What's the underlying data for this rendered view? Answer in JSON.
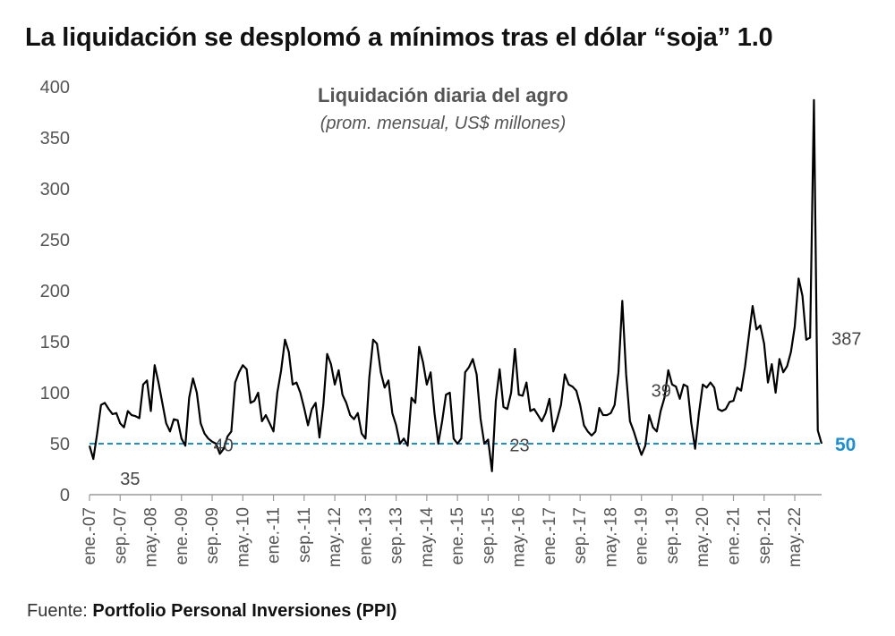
{
  "headline": "La liquidación se desplomó a mínimos tras el dólar “soja” 1.0",
  "source": {
    "label": "Fuente:",
    "name": "Portfolio Personal Inversiones (PPI)"
  },
  "colors": {
    "line": "#000000",
    "reference": "#1a8fd6",
    "axis_text": "#555555",
    "headline": "#111111"
  },
  "chart_data": {
    "type": "line",
    "title": "Liquidación diaria del agro",
    "subtitle": "(prom. mensual, US$ millones)",
    "ylim": [
      0,
      400
    ],
    "yticks": [
      0,
      50,
      100,
      150,
      200,
      250,
      300,
      350,
      400
    ],
    "grid": false,
    "legend": "none",
    "xtick_labels": [
      "ene.-07",
      "sep.-07",
      "may.-08",
      "ene.-09",
      "sep.-09",
      "may.-10",
      "ene.-11",
      "sep.-11",
      "may.-12",
      "ene.-13",
      "sep.-13",
      "may.-14",
      "ene.-15",
      "sep.-15",
      "may.-16",
      "ene.-17",
      "sep.-17",
      "may.-18",
      "ene.-19",
      "sep.-19",
      "may.-20",
      "ene.-21",
      "sep.-21",
      "may.-22"
    ],
    "reference_line": {
      "value": 50,
      "label": "50"
    },
    "annotations": [
      {
        "text": "35",
        "index": 1
      },
      {
        "text": "40",
        "index": 30
      },
      {
        "text": "23",
        "index": 104
      },
      {
        "text": "39",
        "index": 140
      },
      {
        "text": "387",
        "index": 188
      }
    ],
    "series": [
      {
        "values": [
          48,
          35,
          60,
          88,
          90,
          84,
          79,
          80,
          70,
          66,
          82,
          78,
          77,
          75,
          108,
          112,
          82,
          127,
          110,
          90,
          70,
          62,
          74,
          73,
          55,
          48,
          95,
          114,
          100,
          70,
          60,
          55,
          52,
          50,
          40,
          45,
          57,
          62,
          110,
          120,
          127,
          123,
          90,
          92,
          100,
          72,
          78,
          70,
          62,
          100,
          122,
          152,
          140,
          108,
          110,
          100,
          85,
          68,
          84,
          90,
          56,
          88,
          138,
          128,
          108,
          122,
          98,
          90,
          78,
          74,
          80,
          60,
          55,
          115,
          152,
          148,
          120,
          105,
          112,
          80,
          68,
          50,
          55,
          48,
          95,
          90,
          145,
          130,
          108,
          120,
          80,
          50,
          72,
          98,
          100,
          55,
          50,
          55,
          120,
          125,
          133,
          118,
          75,
          50,
          54,
          23,
          92,
          123,
          86,
          84,
          100,
          143,
          98,
          97,
          110,
          82,
          84,
          78,
          72,
          80,
          94,
          62,
          74,
          88,
          118,
          108,
          106,
          102,
          88,
          68,
          62,
          58,
          62,
          85,
          78,
          78,
          80,
          88,
          120,
          190,
          118,
          72,
          62,
          50,
          39,
          48,
          78,
          66,
          62,
          82,
          95,
          122,
          108,
          106,
          94,
          108,
          106,
          70,
          45,
          80,
          108,
          105,
          110,
          105,
          84,
          82,
          84,
          91,
          92,
          105,
          102,
          125,
          155,
          185,
          162,
          166,
          148,
          110,
          128,
          100,
          133,
          120,
          126,
          140,
          165,
          212,
          195,
          152,
          154,
          387,
          63,
          50
        ]
      }
    ]
  }
}
